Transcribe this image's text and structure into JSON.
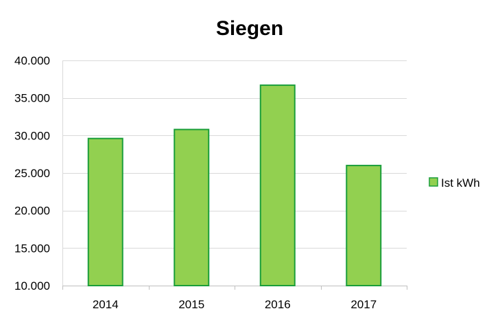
{
  "chart_data": {
    "type": "bar",
    "title": "Siegen",
    "xlabel": "",
    "ylabel": "",
    "categories": [
      "2014",
      "2015",
      "2016",
      "2017"
    ],
    "series": [
      {
        "name": "Ist kWh",
        "values": [
          29600,
          30800,
          36700,
          26000
        ],
        "color": "#92d050",
        "stroke": "#1a9e3a"
      }
    ],
    "ylim": [
      10000,
      40000
    ],
    "yticks": [
      10000,
      15000,
      20000,
      25000,
      30000,
      35000,
      40000
    ],
    "ytick_labels": [
      "10.000",
      "15.000",
      "20.000",
      "25.000",
      "30.000",
      "35.000",
      "40.000"
    ],
    "grid": true,
    "legend_position": "right"
  }
}
